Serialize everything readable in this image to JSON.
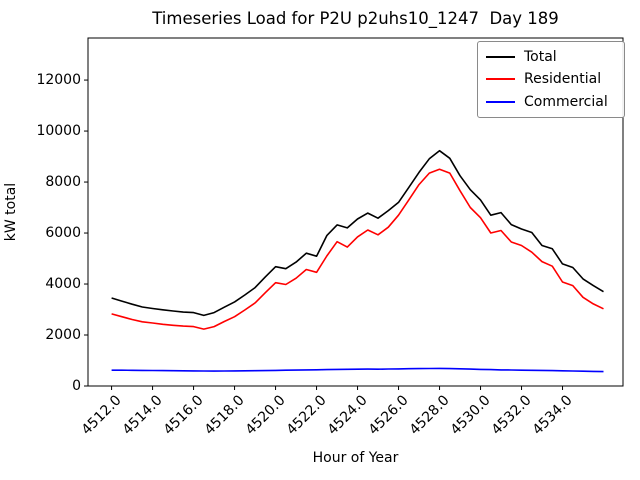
{
  "figure": {
    "title": "Timeseries Load for P2U p2uhs10_1247  Day 189",
    "xlabel": "Hour of Year",
    "ylabel": "kW total"
  },
  "legend": {
    "entries": [
      {
        "label": "Total",
        "color": "#000000"
      },
      {
        "label": "Residential",
        "color": "#ff0000"
      },
      {
        "label": "Commercial",
        "color": "#0000ff"
      }
    ]
  },
  "chart_data": {
    "type": "line",
    "title": "Timeseries Load for P2U p2uhs10_1247  Day 189",
    "xlabel": "Hour of Year",
    "ylabel": "kW total",
    "xlim": [
      4510.85,
      4536.95
    ],
    "ylim": [
      0,
      13650
    ],
    "grid": false,
    "legend_position": "upper right",
    "xticks": [
      4512.0,
      4514.0,
      4516.0,
      4518.0,
      4520.0,
      4522.0,
      4524.0,
      4526.0,
      4528.0,
      4530.0,
      4532.0,
      4534.0
    ],
    "yticks": [
      0,
      2000,
      4000,
      6000,
      8000,
      10000,
      12000
    ],
    "x": [
      4512.0,
      4512.5,
      4513.0,
      4513.5,
      4514.0,
      4514.5,
      4515.0,
      4515.5,
      4516.0,
      4516.5,
      4517.0,
      4517.5,
      4518.0,
      4518.5,
      4519.0,
      4519.5,
      4520.0,
      4520.5,
      4521.0,
      4521.5,
      4522.0,
      4522.5,
      4523.0,
      4523.5,
      4524.0,
      4524.5,
      4525.0,
      4525.5,
      4526.0,
      4526.5,
      4527.0,
      4527.5,
      4528.0,
      4528.5,
      4529.0,
      4529.5,
      4530.0,
      4530.5,
      4531.0,
      4531.5,
      4532.0,
      4532.5,
      4533.0,
      4533.5,
      4534.0,
      4534.5,
      4535.0,
      4535.5,
      4536.0
    ],
    "series": [
      {
        "name": "Total",
        "color": "#000000",
        "values": [
          3450,
          3330,
          3210,
          3100,
          3040,
          2990,
          2940,
          2900,
          2880,
          2770,
          2880,
          3090,
          3300,
          3570,
          3860,
          4280,
          4680,
          4600,
          4860,
          5210,
          5090,
          5900,
          6320,
          6200,
          6550,
          6780,
          6580,
          6880,
          7200,
          7790,
          8380,
          8910,
          9230,
          8930,
          8250,
          7700,
          7300,
          6700,
          6800,
          6330,
          6160,
          6020,
          5510,
          5380,
          4790,
          4650,
          4200,
          3940,
          3700
        ]
      },
      {
        "name": "Residential",
        "color": "#ff0000",
        "values": [
          2830,
          2720,
          2610,
          2520,
          2470,
          2420,
          2380,
          2350,
          2330,
          2230,
          2330,
          2530,
          2720,
          2980,
          3260,
          3660,
          4050,
          3980,
          4230,
          4570,
          4460,
          5100,
          5660,
          5450,
          5850,
          6120,
          5930,
          6230,
          6700,
          7300,
          7900,
          8350,
          8500,
          8350,
          7660,
          7000,
          6600,
          6000,
          6100,
          5650,
          5510,
          5250,
          4880,
          4700,
          4080,
          3940,
          3480,
          3220,
          3030
        ]
      },
      {
        "name": "Commercial",
        "color": "#0000ff",
        "values": [
          620,
          618,
          615,
          612,
          608,
          604,
          600,
          596,
          592,
          588,
          586,
          588,
          592,
          596,
          600,
          606,
          612,
          618,
          624,
          630,
          636,
          642,
          650,
          655,
          660,
          664,
          660,
          666,
          672,
          678,
          684,
          688,
          692,
          684,
          674,
          664,
          652,
          642,
          632,
          626,
          620,
          615,
          610,
          604,
          598,
          590,
          580,
          572,
          564
        ]
      }
    ]
  }
}
